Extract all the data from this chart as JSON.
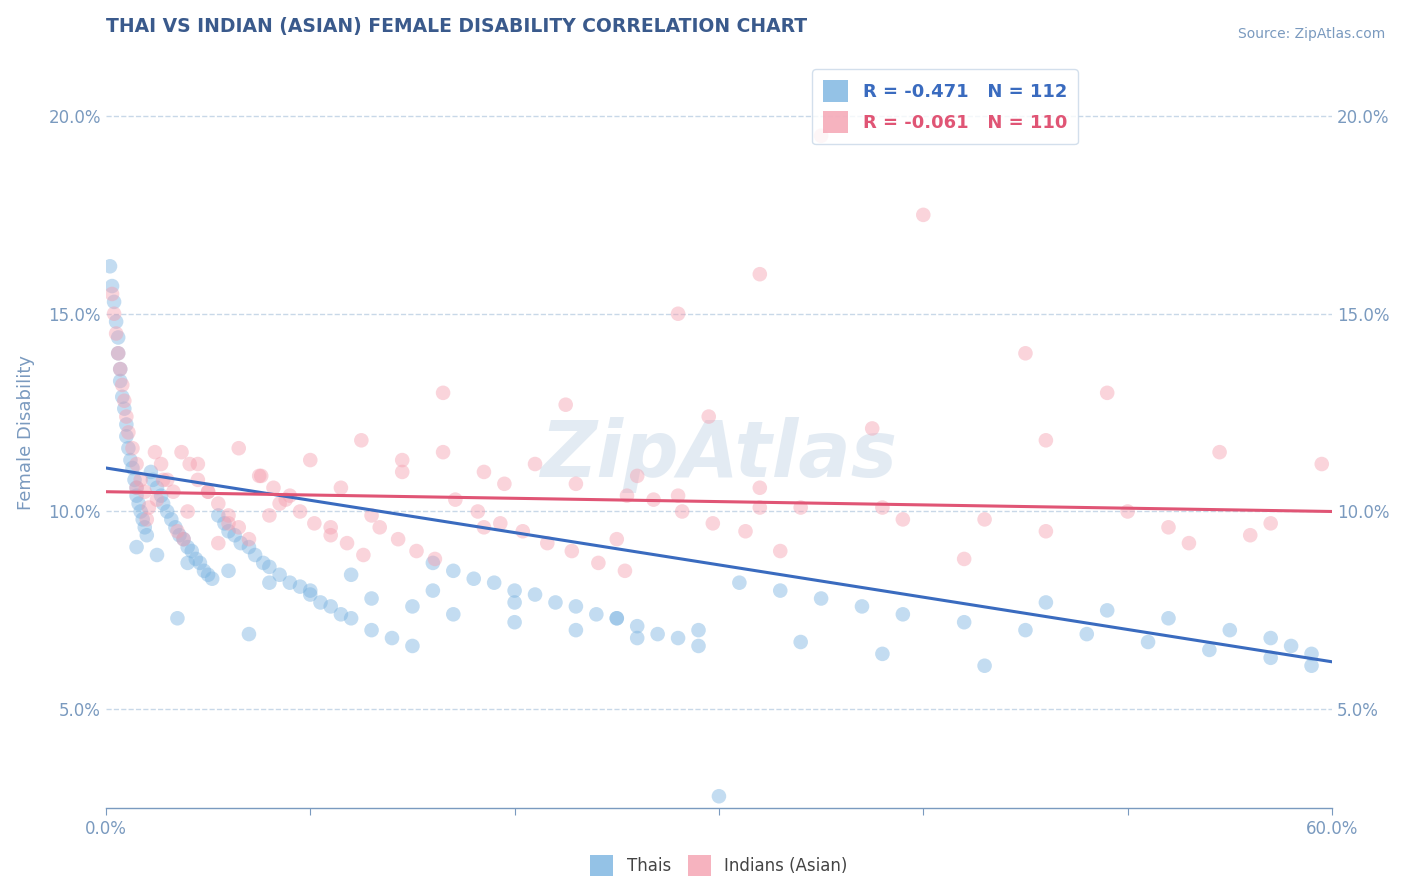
{
  "title": "THAI VS INDIAN (ASIAN) FEMALE DISABILITY CORRELATION CHART",
  "source": "Source: ZipAtlas.com",
  "ylabel": "Female Disability",
  "x_min": 0.0,
  "x_max": 0.6,
  "y_min": 0.025,
  "y_max": 0.215,
  "y_ticks": [
    0.05,
    0.1,
    0.15,
    0.2
  ],
  "y_tick_labels": [
    "5.0%",
    "10.0%",
    "15.0%",
    "20.0%"
  ],
  "x_ticks": [
    0.0,
    0.1,
    0.2,
    0.3,
    0.4,
    0.5,
    0.6
  ],
  "blue_r": -0.471,
  "blue_n": 112,
  "pink_r": -0.061,
  "pink_n": 110,
  "blue_color": "#7ab3e0",
  "pink_color": "#f4a0b0",
  "blue_line_color": "#3a6bbf",
  "pink_line_color": "#e05575",
  "title_color": "#3a5a8c",
  "axis_color": "#7a9abf",
  "grid_color": "#c8d8e8",
  "watermark": "ZipAtlas",
  "blue_trend_x": [
    0.0,
    0.6
  ],
  "blue_trend_y": [
    0.111,
    0.062
  ],
  "pink_trend_x": [
    0.0,
    0.6
  ],
  "pink_trend_y": [
    0.105,
    0.1
  ],
  "marker_size": 110,
  "marker_alpha": 0.45,
  "figsize": [
    14.06,
    8.92
  ],
  "dpi": 100,
  "blue_scatter_x": [
    0.002,
    0.003,
    0.004,
    0.005,
    0.006,
    0.006,
    0.007,
    0.007,
    0.008,
    0.009,
    0.01,
    0.01,
    0.011,
    0.012,
    0.013,
    0.014,
    0.015,
    0.015,
    0.016,
    0.017,
    0.018,
    0.019,
    0.02,
    0.022,
    0.023,
    0.025,
    0.027,
    0.028,
    0.03,
    0.032,
    0.034,
    0.036,
    0.038,
    0.04,
    0.042,
    0.044,
    0.046,
    0.048,
    0.05,
    0.052,
    0.055,
    0.058,
    0.06,
    0.063,
    0.066,
    0.07,
    0.073,
    0.077,
    0.08,
    0.085,
    0.09,
    0.095,
    0.1,
    0.105,
    0.11,
    0.115,
    0.12,
    0.13,
    0.14,
    0.15,
    0.16,
    0.17,
    0.18,
    0.19,
    0.2,
    0.21,
    0.22,
    0.23,
    0.24,
    0.25,
    0.26,
    0.27,
    0.28,
    0.29,
    0.31,
    0.33,
    0.35,
    0.37,
    0.39,
    0.42,
    0.45,
    0.48,
    0.51,
    0.54,
    0.57,
    0.59,
    0.035,
    0.07,
    0.12,
    0.16,
    0.2,
    0.25,
    0.29,
    0.34,
    0.38,
    0.43,
    0.46,
    0.49,
    0.52,
    0.55,
    0.57,
    0.58,
    0.59,
    0.015,
    0.025,
    0.04,
    0.06,
    0.08,
    0.1,
    0.13,
    0.15,
    0.17,
    0.2,
    0.23,
    0.26,
    0.3
  ],
  "blue_scatter_y": [
    0.162,
    0.157,
    0.153,
    0.148,
    0.144,
    0.14,
    0.136,
    0.133,
    0.129,
    0.126,
    0.122,
    0.119,
    0.116,
    0.113,
    0.111,
    0.108,
    0.106,
    0.104,
    0.102,
    0.1,
    0.098,
    0.096,
    0.094,
    0.11,
    0.108,
    0.106,
    0.104,
    0.102,
    0.1,
    0.098,
    0.096,
    0.094,
    0.093,
    0.091,
    0.09,
    0.088,
    0.087,
    0.085,
    0.084,
    0.083,
    0.099,
    0.097,
    0.095,
    0.094,
    0.092,
    0.091,
    0.089,
    0.087,
    0.086,
    0.084,
    0.082,
    0.081,
    0.079,
    0.077,
    0.076,
    0.074,
    0.073,
    0.07,
    0.068,
    0.066,
    0.087,
    0.085,
    0.083,
    0.082,
    0.08,
    0.079,
    0.077,
    0.076,
    0.074,
    0.073,
    0.071,
    0.069,
    0.068,
    0.066,
    0.082,
    0.08,
    0.078,
    0.076,
    0.074,
    0.072,
    0.07,
    0.069,
    0.067,
    0.065,
    0.063,
    0.061,
    0.073,
    0.069,
    0.084,
    0.08,
    0.077,
    0.073,
    0.07,
    0.067,
    0.064,
    0.061,
    0.077,
    0.075,
    0.073,
    0.07,
    0.068,
    0.066,
    0.064,
    0.091,
    0.089,
    0.087,
    0.085,
    0.082,
    0.08,
    0.078,
    0.076,
    0.074,
    0.072,
    0.07,
    0.068,
    0.028
  ],
  "pink_scatter_x": [
    0.003,
    0.004,
    0.005,
    0.006,
    0.007,
    0.008,
    0.009,
    0.01,
    0.011,
    0.013,
    0.015,
    0.017,
    0.019,
    0.021,
    0.024,
    0.027,
    0.03,
    0.033,
    0.037,
    0.041,
    0.045,
    0.05,
    0.055,
    0.06,
    0.065,
    0.07,
    0.076,
    0.082,
    0.088,
    0.095,
    0.102,
    0.11,
    0.118,
    0.126,
    0.134,
    0.143,
    0.152,
    0.161,
    0.171,
    0.182,
    0.193,
    0.204,
    0.216,
    0.228,
    0.241,
    0.254,
    0.268,
    0.282,
    0.297,
    0.313,
    0.02,
    0.035,
    0.055,
    0.08,
    0.11,
    0.145,
    0.185,
    0.23,
    0.28,
    0.34,
    0.015,
    0.025,
    0.04,
    0.06,
    0.09,
    0.125,
    0.165,
    0.21,
    0.26,
    0.32,
    0.038,
    0.065,
    0.1,
    0.145,
    0.195,
    0.255,
    0.32,
    0.39,
    0.46,
    0.53,
    0.045,
    0.075,
    0.115,
    0.165,
    0.225,
    0.295,
    0.375,
    0.46,
    0.545,
    0.595,
    0.028,
    0.05,
    0.085,
    0.13,
    0.185,
    0.25,
    0.33,
    0.42,
    0.5,
    0.57,
    0.35,
    0.4,
    0.32,
    0.28,
    0.45,
    0.49,
    0.38,
    0.43,
    0.52,
    0.56
  ],
  "pink_scatter_y": [
    0.155,
    0.15,
    0.145,
    0.14,
    0.136,
    0.132,
    0.128,
    0.124,
    0.12,
    0.116,
    0.112,
    0.108,
    0.105,
    0.101,
    0.115,
    0.112,
    0.108,
    0.105,
    0.115,
    0.112,
    0.108,
    0.105,
    0.102,
    0.099,
    0.096,
    0.093,
    0.109,
    0.106,
    0.103,
    0.1,
    0.097,
    0.094,
    0.092,
    0.089,
    0.096,
    0.093,
    0.09,
    0.088,
    0.103,
    0.1,
    0.097,
    0.095,
    0.092,
    0.09,
    0.087,
    0.085,
    0.103,
    0.1,
    0.097,
    0.095,
    0.098,
    0.095,
    0.092,
    0.099,
    0.096,
    0.113,
    0.11,
    0.107,
    0.104,
    0.101,
    0.106,
    0.103,
    0.1,
    0.097,
    0.104,
    0.118,
    0.115,
    0.112,
    0.109,
    0.106,
    0.093,
    0.116,
    0.113,
    0.11,
    0.107,
    0.104,
    0.101,
    0.098,
    0.095,
    0.092,
    0.112,
    0.109,
    0.106,
    0.13,
    0.127,
    0.124,
    0.121,
    0.118,
    0.115,
    0.112,
    0.108,
    0.105,
    0.102,
    0.099,
    0.096,
    0.093,
    0.09,
    0.088,
    0.1,
    0.097,
    0.195,
    0.175,
    0.16,
    0.15,
    0.14,
    0.13,
    0.101,
    0.098,
    0.096,
    0.094
  ]
}
